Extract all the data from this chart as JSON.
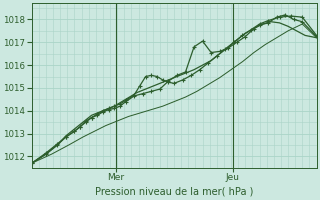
{
  "bg_color": "#cce8e0",
  "grid_color": "#aad4c8",
  "line_color": "#2d5e2d",
  "text_color": "#2d5e2d",
  "ylim": [
    1011.5,
    1018.7
  ],
  "yticks": [
    1012,
    1013,
    1014,
    1015,
    1016,
    1017,
    1018
  ],
  "day_labels": [
    "Mer",
    "Jeu"
  ],
  "day_positions": [
    0.295,
    0.705
  ],
  "xlabel": "Pression niveau de la mer( hPa )",
  "line1_x": [
    0.0,
    0.05,
    0.09,
    0.12,
    0.15,
    0.17,
    0.19,
    0.21,
    0.23,
    0.25,
    0.27,
    0.29,
    0.31,
    0.33,
    0.35,
    0.37,
    0.39,
    0.41,
    0.43,
    0.45,
    0.48,
    0.51,
    0.54,
    0.57,
    0.6,
    0.63,
    0.66,
    0.69,
    0.72,
    0.75,
    0.78,
    0.81,
    0.84,
    0.87,
    0.9,
    0.93,
    0.96,
    1.0
  ],
  "line1_y": [
    1011.7,
    1012.1,
    1012.5,
    1012.9,
    1013.2,
    1013.4,
    1013.6,
    1013.8,
    1013.9,
    1014.0,
    1014.1,
    1014.2,
    1014.35,
    1014.5,
    1014.65,
    1014.8,
    1014.9,
    1015.0,
    1015.1,
    1015.2,
    1015.35,
    1015.5,
    1015.65,
    1015.8,
    1016.0,
    1016.2,
    1016.5,
    1016.8,
    1017.1,
    1017.4,
    1017.6,
    1017.8,
    1017.9,
    1017.85,
    1017.7,
    1017.5,
    1017.3,
    1017.2
  ],
  "line2_x": [
    0.0,
    0.05,
    0.09,
    0.12,
    0.15,
    0.17,
    0.19,
    0.21,
    0.23,
    0.25,
    0.27,
    0.29,
    0.31,
    0.33,
    0.36,
    0.39,
    0.42,
    0.45,
    0.48,
    0.51,
    0.54,
    0.57,
    0.6,
    0.63,
    0.66,
    0.69,
    0.72,
    0.75,
    0.78,
    0.8,
    0.83,
    0.86,
    0.89,
    0.92,
    0.95,
    1.0
  ],
  "line2_y": [
    1011.7,
    1012.15,
    1012.55,
    1012.85,
    1013.1,
    1013.3,
    1013.55,
    1013.7,
    1013.8,
    1013.95,
    1014.05,
    1014.1,
    1014.2,
    1014.4,
    1014.65,
    1014.75,
    1014.85,
    1014.95,
    1015.3,
    1015.55,
    1015.7,
    1016.8,
    1017.05,
    1016.55,
    1016.6,
    1016.75,
    1017.0,
    1017.25,
    1017.6,
    1017.75,
    1017.85,
    1018.1,
    1018.2,
    1018.0,
    1017.9,
    1017.25
  ],
  "line3_x": [
    0.0,
    0.05,
    0.09,
    0.12,
    0.15,
    0.17,
    0.19,
    0.21,
    0.23,
    0.25,
    0.27,
    0.29,
    0.31,
    0.33,
    0.36,
    0.38,
    0.4,
    0.42,
    0.44,
    0.46,
    0.48,
    0.5,
    0.53,
    0.56,
    0.59,
    0.62,
    0.65,
    0.68,
    0.71,
    0.74,
    0.77,
    0.8,
    0.83,
    0.87,
    0.91,
    0.95,
    1.0
  ],
  "line3_y": [
    1011.7,
    1012.1,
    1012.5,
    1012.85,
    1013.1,
    1013.3,
    1013.5,
    1013.7,
    1013.85,
    1014.0,
    1014.1,
    1014.2,
    1014.3,
    1014.45,
    1014.7,
    1015.1,
    1015.5,
    1015.55,
    1015.5,
    1015.35,
    1015.25,
    1015.2,
    1015.35,
    1015.55,
    1015.8,
    1016.1,
    1016.4,
    1016.7,
    1017.0,
    1017.3,
    1017.55,
    1017.8,
    1017.95,
    1018.1,
    1018.15,
    1018.1,
    1017.3
  ],
  "line4_x": [
    0.0,
    0.07,
    0.13,
    0.18,
    0.22,
    0.26,
    0.3,
    0.34,
    0.38,
    0.42,
    0.46,
    0.5,
    0.54,
    0.58,
    0.62,
    0.66,
    0.7,
    0.74,
    0.78,
    0.82,
    0.86,
    0.9,
    0.95,
    1.0
  ],
  "line4_y": [
    1011.7,
    1012.1,
    1012.5,
    1012.85,
    1013.1,
    1013.35,
    1013.55,
    1013.75,
    1013.9,
    1014.05,
    1014.2,
    1014.4,
    1014.6,
    1014.85,
    1015.15,
    1015.45,
    1015.8,
    1016.15,
    1016.55,
    1016.9,
    1017.2,
    1017.5,
    1017.8,
    1017.2
  ]
}
